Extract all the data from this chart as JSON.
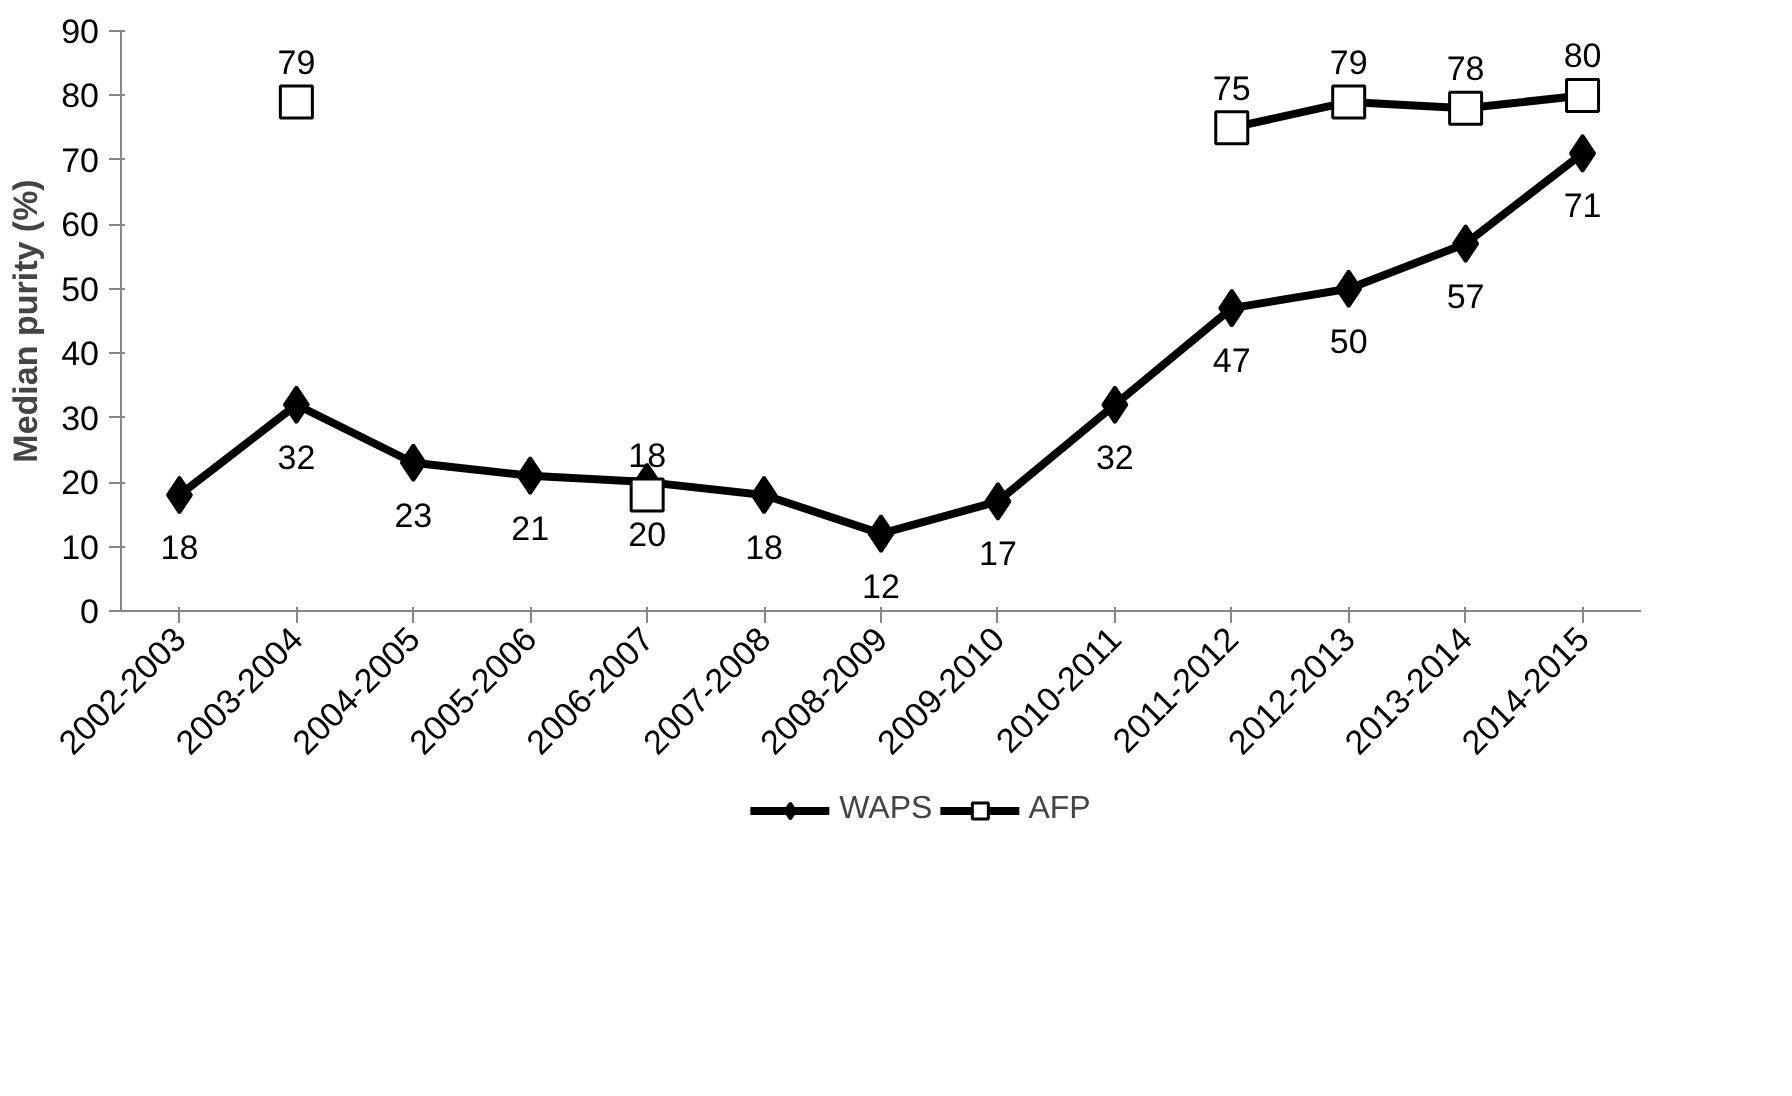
{
  "chart_data": {
    "type": "line",
    "ylabel": "Median purity (%)",
    "categories": [
      "2002-2003",
      "2003-2004",
      "2004-2005",
      "2005-2006",
      "2006-2007",
      "2007-2008",
      "2008-2009",
      "2009-2010",
      "2010-2011",
      "2011-2012",
      "2012-2013",
      "2013-2014",
      "2014-2015"
    ],
    "series": [
      {
        "name": "WAPS",
        "color": "#000000",
        "marker": "diamond",
        "values": [
          18,
          32,
          23,
          21,
          20,
          18,
          12,
          17,
          32,
          47,
          50,
          57,
          71
        ]
      },
      {
        "name": "AFP",
        "color": "#000000",
        "marker": "square",
        "values": [
          null,
          79,
          null,
          null,
          18,
          null,
          null,
          null,
          null,
          75,
          79,
          78,
          80
        ]
      }
    ],
    "ylim": [
      0,
      90
    ],
    "yticks": [
      0,
      10,
      20,
      30,
      40,
      50,
      60,
      70,
      80,
      90
    ],
    "grid": false,
    "legend": "bottom",
    "data_labels": true,
    "line_style": "solid"
  }
}
